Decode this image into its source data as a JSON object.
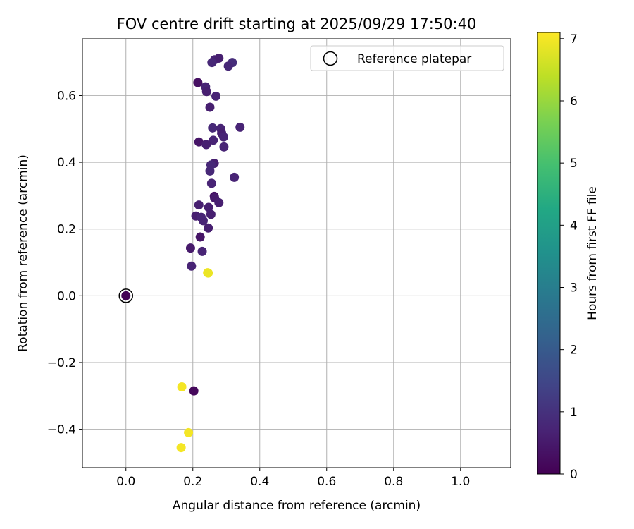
{
  "chart_data": {
    "type": "scatter",
    "title": "FOV centre drift starting at 2025/09/29 17:50:40",
    "xlabel": "Angular distance from reference (arcmin)",
    "ylabel": "Rotation from reference (arcmin)",
    "xlim": [
      -0.13,
      1.15
    ],
    "ylim": [
      -0.515,
      0.77
    ],
    "xticks": [
      0.0,
      0.2,
      0.4,
      0.6,
      0.8,
      1.0
    ],
    "xtick_labels": [
      "0.0",
      "0.2",
      "0.4",
      "0.6",
      "0.8",
      "1.0"
    ],
    "yticks": [
      -0.4,
      -0.2,
      0.0,
      0.2,
      0.4,
      0.6
    ],
    "ytick_labels": [
      "−0.4",
      "−0.2",
      "0.0",
      "0.2",
      "0.4",
      "0.6"
    ],
    "grid": true,
    "legend": {
      "position": "top-right",
      "entries": [
        {
          "label": "Reference platepar",
          "marker": "open-circle"
        }
      ]
    },
    "colorbar": {
      "label": "Hours from first FF file",
      "colormap": "viridis",
      "range": [
        0,
        7.1
      ],
      "ticks": [
        0,
        1,
        2,
        3,
        4,
        5,
        6,
        7
      ],
      "tick_labels": [
        "0",
        "1",
        "2",
        "3",
        "4",
        "5",
        "6",
        "7"
      ]
    },
    "reference": {
      "x": 0.0,
      "y": 0.0,
      "c": 0.0
    },
    "points": [
      {
        "x": 0.0,
        "y": 0.0,
        "c": 0.05
      },
      {
        "x": 0.265,
        "y": 0.707,
        "c": 0.7
      },
      {
        "x": 0.278,
        "y": 0.712,
        "c": 0.6
      },
      {
        "x": 0.257,
        "y": 0.699,
        "c": 0.8
      },
      {
        "x": 0.318,
        "y": 0.699,
        "c": 0.9
      },
      {
        "x": 0.306,
        "y": 0.688,
        "c": 0.8
      },
      {
        "x": 0.215,
        "y": 0.639,
        "c": 0.3
      },
      {
        "x": 0.238,
        "y": 0.626,
        "c": 0.7
      },
      {
        "x": 0.241,
        "y": 0.612,
        "c": 0.6
      },
      {
        "x": 0.269,
        "y": 0.598,
        "c": 0.7
      },
      {
        "x": 0.251,
        "y": 0.565,
        "c": 0.6
      },
      {
        "x": 0.341,
        "y": 0.505,
        "c": 0.7
      },
      {
        "x": 0.259,
        "y": 0.503,
        "c": 0.8
      },
      {
        "x": 0.283,
        "y": 0.501,
        "c": 0.7
      },
      {
        "x": 0.286,
        "y": 0.487,
        "c": 0.6
      },
      {
        "x": 0.292,
        "y": 0.476,
        "c": 0.7
      },
      {
        "x": 0.261,
        "y": 0.466,
        "c": 0.7
      },
      {
        "x": 0.218,
        "y": 0.461,
        "c": 0.4
      },
      {
        "x": 0.24,
        "y": 0.453,
        "c": 0.6
      },
      {
        "x": 0.293,
        "y": 0.446,
        "c": 0.7
      },
      {
        "x": 0.264,
        "y": 0.397,
        "c": 0.6
      },
      {
        "x": 0.254,
        "y": 0.392,
        "c": 0.8
      },
      {
        "x": 0.251,
        "y": 0.374,
        "c": 0.8
      },
      {
        "x": 0.324,
        "y": 0.355,
        "c": 0.7
      },
      {
        "x": 0.256,
        "y": 0.337,
        "c": 0.7
      },
      {
        "x": 0.264,
        "y": 0.298,
        "c": 0.3
      },
      {
        "x": 0.265,
        "y": 0.293,
        "c": 0.5
      },
      {
        "x": 0.278,
        "y": 0.279,
        "c": 0.6
      },
      {
        "x": 0.218,
        "y": 0.272,
        "c": 0.6
      },
      {
        "x": 0.247,
        "y": 0.265,
        "c": 0.6
      },
      {
        "x": 0.254,
        "y": 0.244,
        "c": 0.6
      },
      {
        "x": 0.209,
        "y": 0.239,
        "c": 0.6
      },
      {
        "x": 0.225,
        "y": 0.235,
        "c": 0.7
      },
      {
        "x": 0.231,
        "y": 0.225,
        "c": 0.7
      },
      {
        "x": 0.246,
        "y": 0.203,
        "c": 0.6
      },
      {
        "x": 0.222,
        "y": 0.176,
        "c": 0.4
      },
      {
        "x": 0.193,
        "y": 0.143,
        "c": 0.5
      },
      {
        "x": 0.228,
        "y": 0.133,
        "c": 0.7
      },
      {
        "x": 0.196,
        "y": 0.089,
        "c": 0.7
      },
      {
        "x": 0.244,
        "y": 0.069,
        "c": 7.0
      },
      {
        "x": 0.246,
        "y": 0.068,
        "c": 6.9
      },
      {
        "x": 0.167,
        "y": -0.273,
        "c": 7.0
      },
      {
        "x": 0.203,
        "y": -0.285,
        "c": 0.15
      },
      {
        "x": 0.187,
        "y": -0.41,
        "c": 7.0
      },
      {
        "x": 0.165,
        "y": -0.455,
        "c": 7.0
      }
    ]
  }
}
